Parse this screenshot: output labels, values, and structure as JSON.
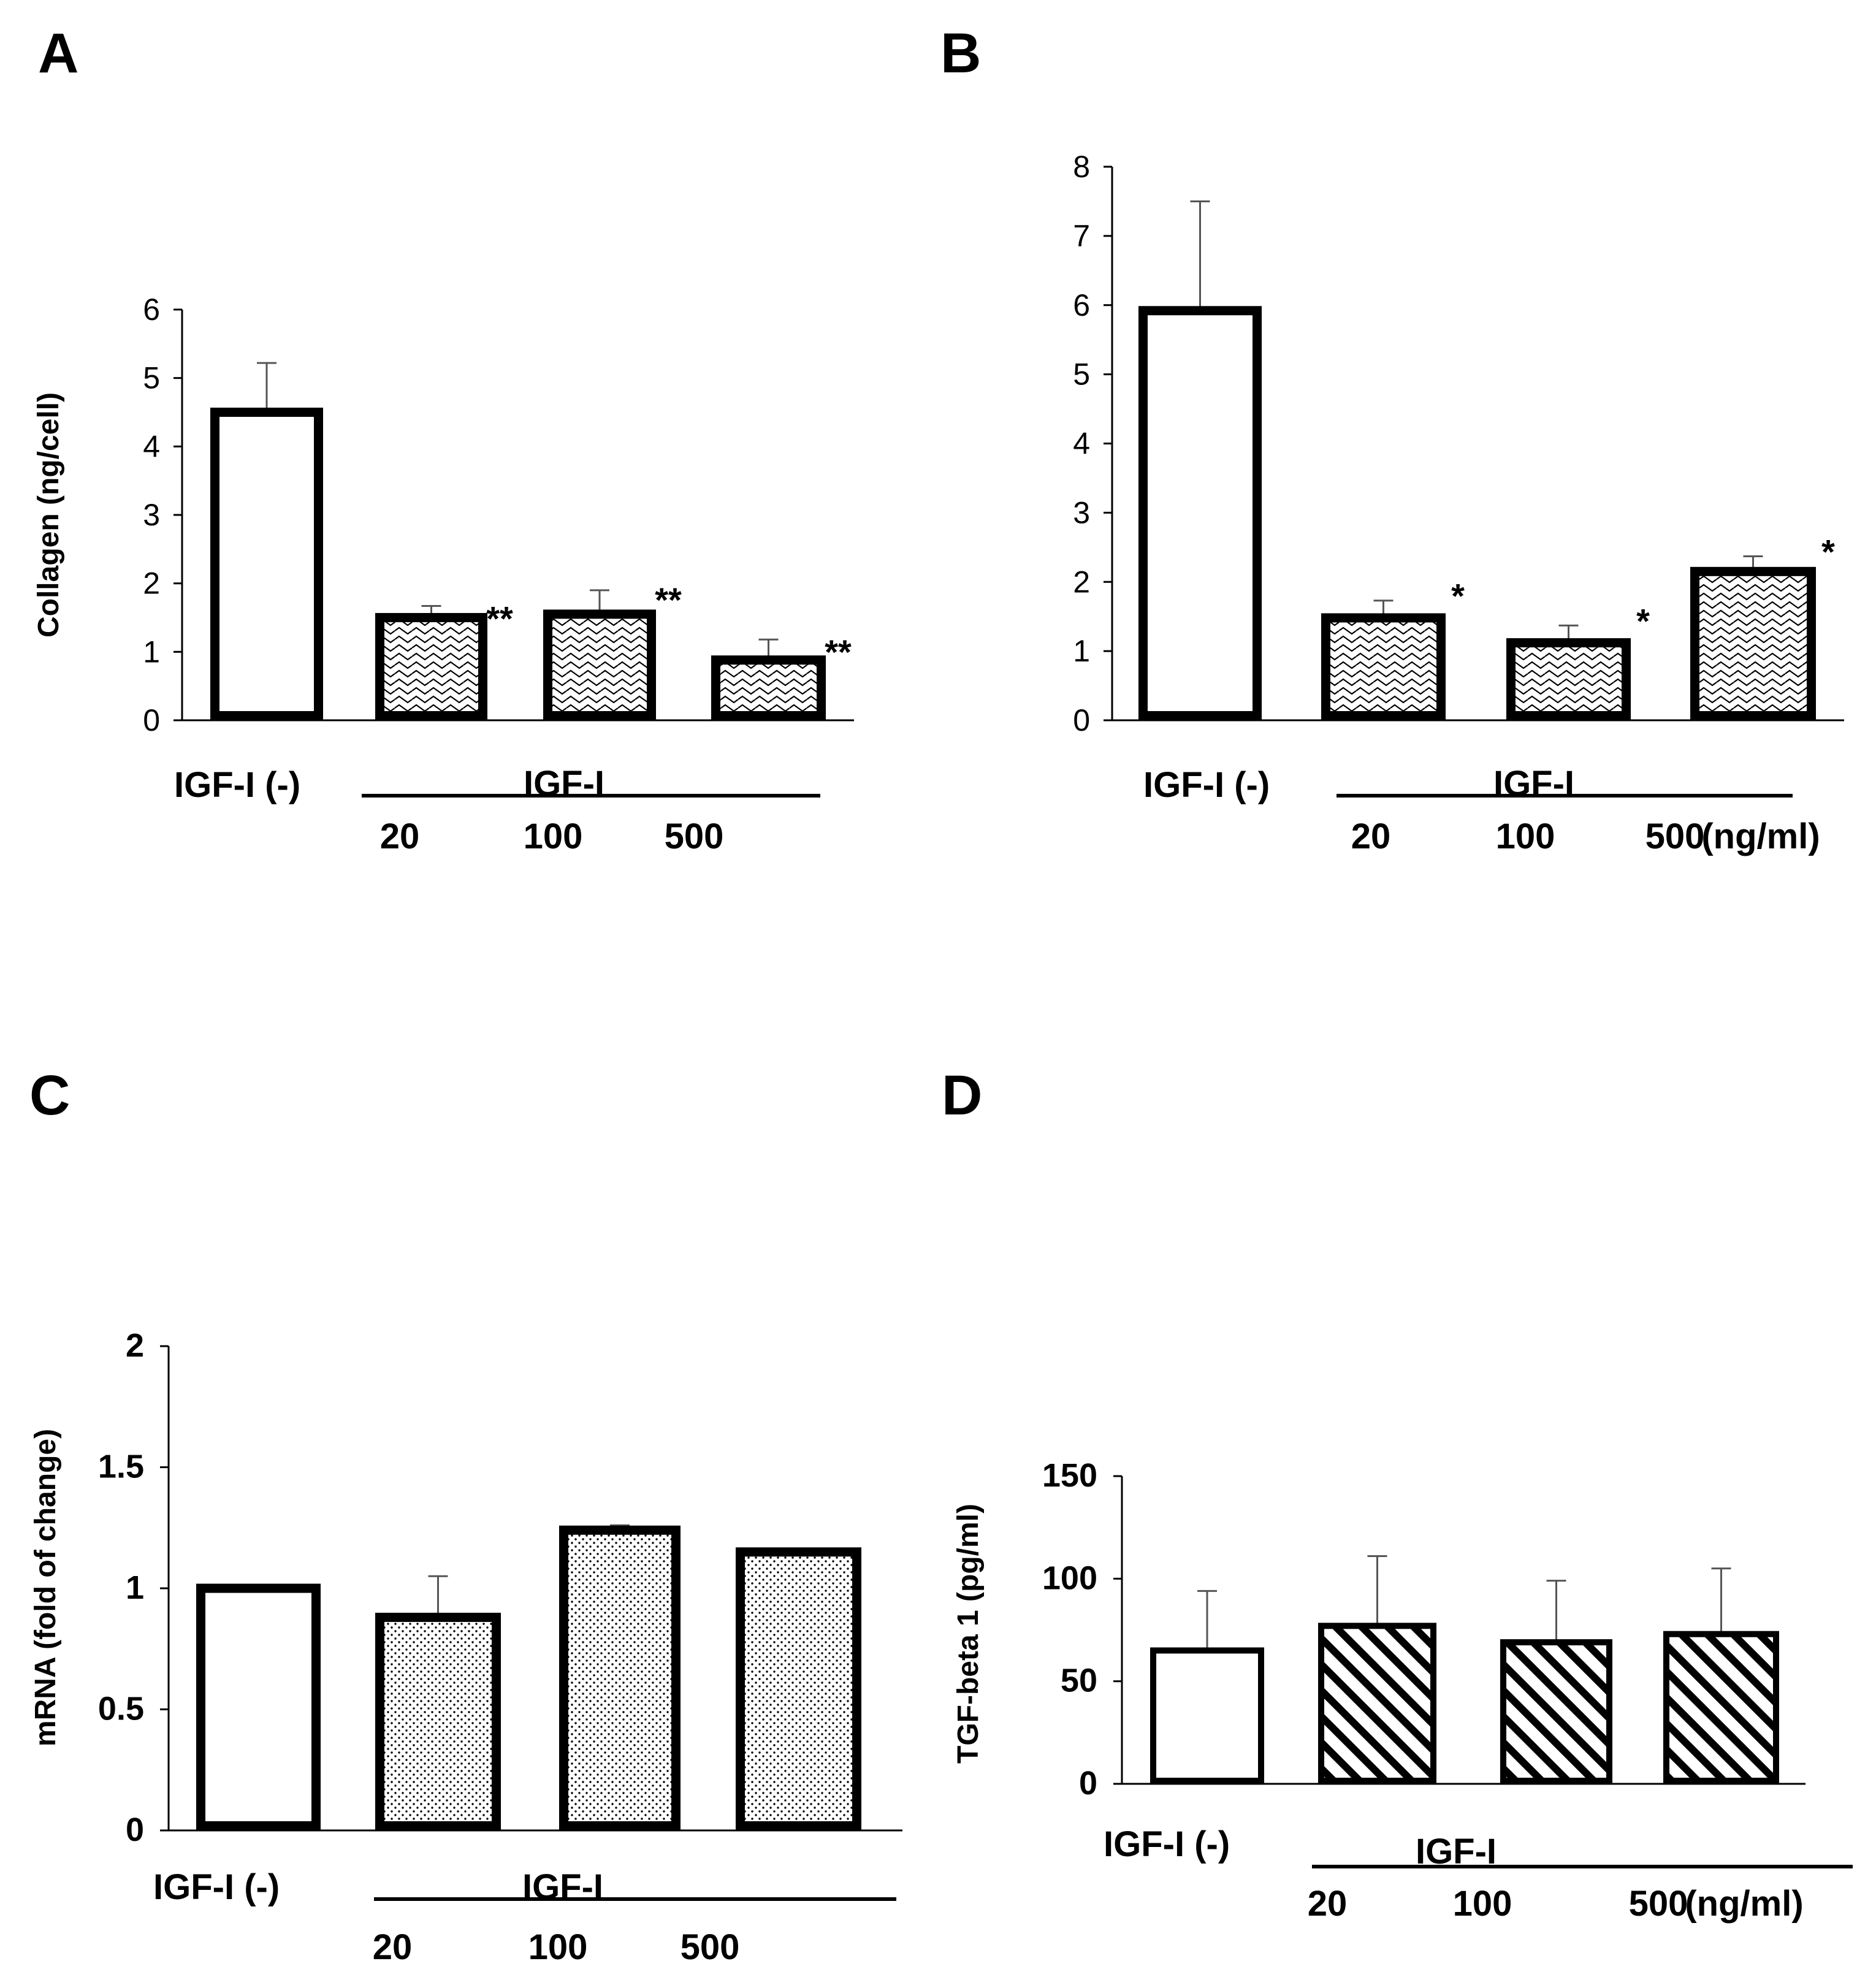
{
  "figure": {
    "panels": [
      "A",
      "B",
      "C",
      "D"
    ]
  },
  "chart_data": [
    {
      "panel": "A",
      "type": "bar",
      "title": "",
      "xlabel": "",
      "ylabel": "Collagen (ng/cell)",
      "ylim": [
        0,
        6
      ],
      "yticks": [
        "0",
        "1",
        "2",
        "3",
        "4",
        "5",
        "6"
      ],
      "categories": [
        "IGF-I (-)",
        "20",
        "100",
        "500"
      ],
      "values": [
        4.5,
        1.5,
        1.55,
        0.88
      ],
      "errors": [
        0.72,
        0.17,
        0.35,
        0.3
      ],
      "fills": [
        "none",
        "wave",
        "wave",
        "wave"
      ],
      "significance": [
        "",
        "**",
        "**",
        "**"
      ],
      "group_label": "IGF-I",
      "control_label": "IGF-I (-)",
      "dose_labels": [
        "20",
        "100",
        "500"
      ],
      "units": ""
    },
    {
      "panel": "B",
      "type": "bar",
      "title": "",
      "xlabel": "",
      "ylabel": "",
      "ylim": [
        0,
        8
      ],
      "yticks": [
        "0",
        "1",
        "2",
        "3",
        "4",
        "5",
        "6",
        "7",
        "8"
      ],
      "categories": [
        "IGF-I (-)",
        "20",
        "100",
        "500"
      ],
      "values": [
        5.92,
        1.48,
        1.12,
        2.15
      ],
      "errors": [
        1.58,
        0.25,
        0.25,
        0.22
      ],
      "fills": [
        "none",
        "wave",
        "wave",
        "wave"
      ],
      "significance": [
        "",
        "*",
        "*",
        "*"
      ],
      "group_label": "IGF-I",
      "control_label": "IGF-I (-)",
      "dose_labels": [
        "20",
        "100",
        "500"
      ],
      "units": "(ng/ml)"
    },
    {
      "panel": "C",
      "type": "bar",
      "title": "",
      "xlabel": "",
      "ylabel": "mRNA  (fold of change)",
      "ylim": [
        0,
        2
      ],
      "yticks": [
        "0",
        "0.5",
        "1",
        "1.5",
        "2"
      ],
      "categories": [
        "IGF-I (-)",
        "20",
        "100",
        "500"
      ],
      "values": [
        1.0,
        0.88,
        1.24,
        1.15
      ],
      "errors": [
        0,
        0.17,
        0.02,
        0
      ],
      "fills": [
        "none",
        "dots",
        "dots",
        "dots"
      ],
      "significance": [
        "",
        "",
        "",
        ""
      ],
      "group_label": "IGF-I",
      "control_label": "IGF-I (-)",
      "dose_labels": [
        "20",
        "100",
        "500"
      ],
      "units": ""
    },
    {
      "panel": "D",
      "type": "bar",
      "title": "",
      "xlabel": "",
      "ylabel": "TGF-beta 1 (pg/ml)",
      "ylim": [
        0,
        150
      ],
      "yticks": [
        "0",
        "50",
        "100",
        "150"
      ],
      "categories": [
        "IGF-I (-)",
        "20",
        "100",
        "500"
      ],
      "values": [
        65,
        77,
        69,
        73
      ],
      "errors": [
        29,
        34,
        30,
        32
      ],
      "fills": [
        "none",
        "hatch",
        "hatch",
        "hatch"
      ],
      "significance": [
        "",
        "",
        "",
        ""
      ],
      "group_label": "IGF-I",
      "control_label": "IGF-I (-)",
      "dose_labels": [
        "20",
        "100",
        "500"
      ],
      "units": "(ng/ml)"
    }
  ]
}
